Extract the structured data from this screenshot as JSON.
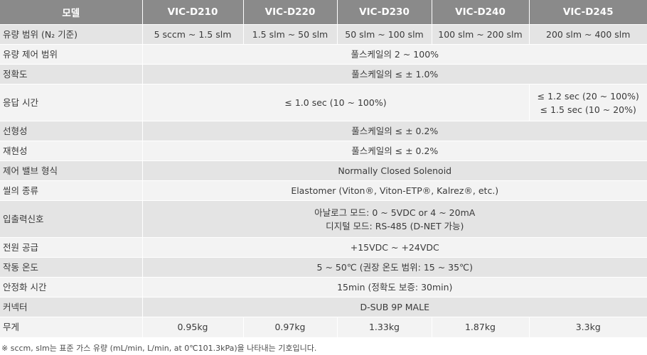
{
  "header": {
    "model": "모델",
    "models": [
      "VIC-D210",
      "VIC-D220",
      "VIC-D230",
      "VIC-D240",
      "VIC-D245"
    ]
  },
  "rows": {
    "flow_range": {
      "label": "유량 범위 (N₂ 기준)",
      "values": [
        "5 sccm ~ 1.5 slm",
        "1.5 slm ~ 50 slm",
        "50 slm ~ 100 slm",
        "100 slm ~ 200 slm",
        "200 slm ~ 400 slm"
      ]
    },
    "control_range": {
      "label": "유량 제어 범위",
      "value": "풀스케일의 2 ~ 100%"
    },
    "accuracy": {
      "label": "정확도",
      "value": "풀스케일의 ≤ ± 1.0%"
    },
    "response_time": {
      "label": "응답 시간",
      "value_main": "≤ 1.0 sec (10 ~ 100%)",
      "value_d245_line1": "≤ 1.2 sec (20 ~ 100%)",
      "value_d245_line2": "≤ 1.5 sec (10 ~ 20%)"
    },
    "linearity": {
      "label": "선형성",
      "value": "풀스케일의 ≤ ± 0.2%"
    },
    "repeatability": {
      "label": "재현성",
      "value": "풀스케일의 ≤ ± 0.2%"
    },
    "valve_type": {
      "label": "제어 밸브 형식",
      "value": "Normally Closed Solenoid"
    },
    "seal_type": {
      "label": "씰의 종류",
      "value": "Elastomer (Viton®, Viton-ETP®, Kalrez®, etc.)"
    },
    "io_signal": {
      "label": "입출력신호",
      "line1": "아날로그 모드: 0 ~ 5VDC or 4 ~ 20mA",
      "line2": "디지털 모드: RS-485 (D-NET 가능)"
    },
    "power": {
      "label": "전원 공급",
      "value": "+15VDC ~ +24VDC"
    },
    "operating_temp": {
      "label": "작동 온도",
      "value": "5 ~ 50℃ (권장 온도 범위: 15 ~ 35℃)"
    },
    "warmup": {
      "label": "안정화 시간",
      "value": "15min (정확도 보증: 30min)"
    },
    "connector": {
      "label": "커넥터",
      "value": "D-SUB 9P MALE"
    },
    "weight": {
      "label": "무게",
      "values": [
        "0.95kg",
        "0.97kg",
        "1.33kg",
        "1.87kg",
        "3.3kg"
      ]
    }
  },
  "footnote": "※ sccm, slm는 표준 가스 유량 (mL/min, L/min, at 0℃101.3kPa)을 나타내는 기호입니다.",
  "colors": {
    "header_bg": "#8a8a8a",
    "row_dark": "#e4e4e4",
    "row_light": "#f3f3f3",
    "text": "#3a3a3a"
  }
}
